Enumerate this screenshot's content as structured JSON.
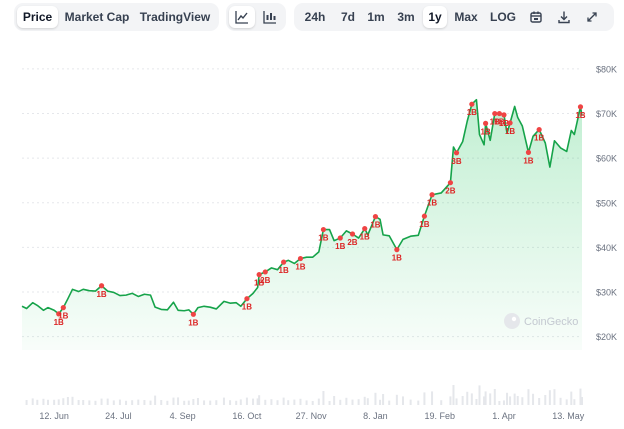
{
  "toolbar": {
    "view_tabs": [
      "Price",
      "Market Cap",
      "TradingView"
    ],
    "active_view": "Price",
    "chart_style_icons": [
      "line-chart-icon",
      "candlestick-chart-icon"
    ],
    "active_style": "line-chart-icon",
    "ranges": [
      "24h",
      "7d",
      "1m",
      "3m",
      "1y",
      "Max",
      "LOG"
    ],
    "active_range": "1y",
    "action_icons": [
      "calendar-icon",
      "download-icon",
      "expand-icon"
    ]
  },
  "watermark": "CoinGecko",
  "colors": {
    "line": "#16a34a",
    "area_top": "#22c55e",
    "event_marker": "#ef4444",
    "event_label": "#dc2626",
    "grid": "#e5e7eb",
    "axis_text": "#6b7280"
  },
  "chart_data": {
    "type": "area",
    "y_axis_ticks": [
      "$20K",
      "$30K",
      "$40K",
      "$50K",
      "$60K",
      "$70K",
      "$80K"
    ],
    "y_tick_values": [
      20000,
      30000,
      40000,
      50000,
      60000,
      70000,
      80000
    ],
    "ylim": [
      17000,
      82000
    ],
    "x_axis_ticks": [
      "12. Jun",
      "24. Jul",
      "4. Sep",
      "16. Oct",
      "27. Nov",
      "8. Jan",
      "19. Feb",
      "1. Apr",
      "13. May"
    ],
    "x_tick_dates": [
      "2023-06-12",
      "2023-07-24",
      "2023-09-04",
      "2023-10-16",
      "2023-11-27",
      "2024-01-08",
      "2024-02-19",
      "2024-04-01",
      "2024-05-13"
    ],
    "xlim": [
      "2023-05-22",
      "2024-05-22"
    ],
    "series": [
      {
        "values": [
          [
            "2023-05-22",
            26800
          ],
          [
            "2023-05-25",
            26300
          ],
          [
            "2023-05-29",
            27600
          ],
          [
            "2023-06-01",
            27000
          ],
          [
            "2023-06-05",
            25900
          ],
          [
            "2023-06-08",
            26500
          ],
          [
            "2023-06-12",
            25900
          ],
          [
            "2023-06-15",
            25100
          ],
          [
            "2023-06-18",
            26500
          ],
          [
            "2023-06-21",
            28500
          ],
          [
            "2023-06-24",
            30600
          ],
          [
            "2023-06-28",
            30100
          ],
          [
            "2023-07-01",
            30600
          ],
          [
            "2023-07-05",
            30300
          ],
          [
            "2023-07-09",
            30200
          ],
          [
            "2023-07-13",
            31400
          ],
          [
            "2023-07-17",
            30200
          ],
          [
            "2023-07-21",
            29900
          ],
          [
            "2023-07-25",
            29200
          ],
          [
            "2023-07-29",
            29300
          ],
          [
            "2023-08-02",
            29700
          ],
          [
            "2023-08-06",
            29000
          ],
          [
            "2023-08-10",
            29500
          ],
          [
            "2023-08-14",
            29300
          ],
          [
            "2023-08-17",
            26600
          ],
          [
            "2023-08-21",
            26100
          ],
          [
            "2023-08-25",
            26000
          ],
          [
            "2023-08-29",
            27700
          ],
          [
            "2023-09-01",
            25900
          ],
          [
            "2023-09-05",
            25800
          ],
          [
            "2023-09-08",
            26000
          ],
          [
            "2023-09-11",
            25000
          ],
          [
            "2023-09-14",
            26500
          ],
          [
            "2023-09-18",
            26800
          ],
          [
            "2023-09-22",
            26600
          ],
          [
            "2023-09-26",
            26200
          ],
          [
            "2023-10-01",
            27900
          ],
          [
            "2023-10-05",
            27500
          ],
          [
            "2023-10-09",
            27600
          ],
          [
            "2023-10-12",
            26800
          ],
          [
            "2023-10-16",
            28500
          ],
          [
            "2023-10-20",
            29700
          ],
          [
            "2023-10-23",
            31000
          ],
          [
            "2023-10-24",
            33900
          ],
          [
            "2023-10-28",
            34500
          ],
          [
            "2023-11-01",
            35400
          ],
          [
            "2023-11-05",
            35000
          ],
          [
            "2023-11-09",
            36700
          ],
          [
            "2023-11-12",
            37100
          ],
          [
            "2023-11-16",
            36400
          ],
          [
            "2023-11-20",
            37500
          ],
          [
            "2023-11-24",
            37800
          ],
          [
            "2023-11-28",
            37800
          ],
          [
            "2023-12-02",
            39000
          ],
          [
            "2023-12-05",
            44000
          ],
          [
            "2023-12-09",
            44000
          ],
          [
            "2023-12-12",
            41500
          ],
          [
            "2023-12-16",
            42100
          ],
          [
            "2023-12-20",
            43700
          ],
          [
            "2023-12-24",
            43000
          ],
          [
            "2023-12-28",
            42100
          ],
          [
            "2024-01-01",
            44200
          ],
          [
            "2024-01-03",
            42800
          ],
          [
            "2024-01-08",
            46900
          ],
          [
            "2024-01-11",
            46300
          ],
          [
            "2024-01-13",
            42800
          ],
          [
            "2024-01-17",
            42600
          ],
          [
            "2024-01-22",
            39500
          ],
          [
            "2024-01-26",
            41800
          ],
          [
            "2024-01-31",
            42500
          ],
          [
            "2024-02-05",
            42700
          ],
          [
            "2024-02-09",
            47000
          ],
          [
            "2024-02-14",
            51800
          ],
          [
            "2024-02-20",
            52200
          ],
          [
            "2024-02-26",
            54500
          ],
          [
            "2024-02-28",
            62500
          ],
          [
            "2024-03-01",
            61200
          ],
          [
            "2024-03-05",
            63700
          ],
          [
            "2024-03-08",
            68300
          ],
          [
            "2024-03-11",
            72100
          ],
          [
            "2024-03-14",
            73100
          ],
          [
            "2024-03-16",
            65300
          ],
          [
            "2024-03-19",
            63000
          ],
          [
            "2024-03-20",
            67800
          ],
          [
            "2024-03-23",
            64000
          ],
          [
            "2024-03-26",
            70000
          ],
          [
            "2024-03-29",
            70000
          ],
          [
            "2024-04-01",
            69700
          ],
          [
            "2024-04-03",
            65600
          ],
          [
            "2024-04-05",
            67900
          ],
          [
            "2024-04-08",
            71600
          ],
          [
            "2024-04-10",
            69100
          ],
          [
            "2024-04-13",
            67200
          ],
          [
            "2024-04-17",
            61300
          ],
          [
            "2024-04-20",
            64900
          ],
          [
            "2024-04-24",
            66400
          ],
          [
            "2024-04-28",
            63400
          ],
          [
            "2024-05-01",
            58000
          ],
          [
            "2024-05-04",
            63900
          ],
          [
            "2024-05-08",
            62300
          ],
          [
            "2024-05-12",
            61500
          ],
          [
            "2024-05-15",
            66200
          ],
          [
            "2024-05-17",
            65300
          ],
          [
            "2024-05-21",
            71500
          ],
          [
            "2024-05-22",
            69500
          ]
        ]
      }
    ],
    "event_labels": [
      {
        "date": "2023-06-15",
        "label": "1B"
      },
      {
        "date": "2023-06-18",
        "label": "1B"
      },
      {
        "date": "2023-07-13",
        "label": "1B"
      },
      {
        "date": "2023-09-11",
        "label": "1B"
      },
      {
        "date": "2023-10-16",
        "label": "1B"
      },
      {
        "date": "2023-10-24",
        "label": "1B"
      },
      {
        "date": "2023-10-28",
        "label": "2B"
      },
      {
        "date": "2023-11-09",
        "label": "1B"
      },
      {
        "date": "2023-11-20",
        "label": "1B"
      },
      {
        "date": "2023-12-05",
        "label": "1B"
      },
      {
        "date": "2023-12-16",
        "label": "1B"
      },
      {
        "date": "2023-12-24",
        "label": "2B"
      },
      {
        "date": "2024-01-01",
        "label": "1B"
      },
      {
        "date": "2024-01-08",
        "label": "1B"
      },
      {
        "date": "2024-01-22",
        "label": "1B"
      },
      {
        "date": "2024-02-09",
        "label": "1B"
      },
      {
        "date": "2024-02-14",
        "label": "1B"
      },
      {
        "date": "2024-02-26",
        "label": "2B"
      },
      {
        "date": "2024-03-01",
        "label": "3B"
      },
      {
        "date": "2024-03-11",
        "label": "1B"
      },
      {
        "date": "2024-03-20",
        "label": "1B"
      },
      {
        "date": "2024-03-26",
        "label": "1B"
      },
      {
        "date": "2024-03-29",
        "label": "1B"
      },
      {
        "date": "2024-04-01",
        "label": "1B"
      },
      {
        "date": "2024-04-05",
        "label": "1B"
      },
      {
        "date": "2024-04-17",
        "label": "1B"
      },
      {
        "date": "2024-04-24",
        "label": "1B"
      },
      {
        "date": "2024-05-21",
        "label": "1B"
      }
    ],
    "grid": true
  }
}
